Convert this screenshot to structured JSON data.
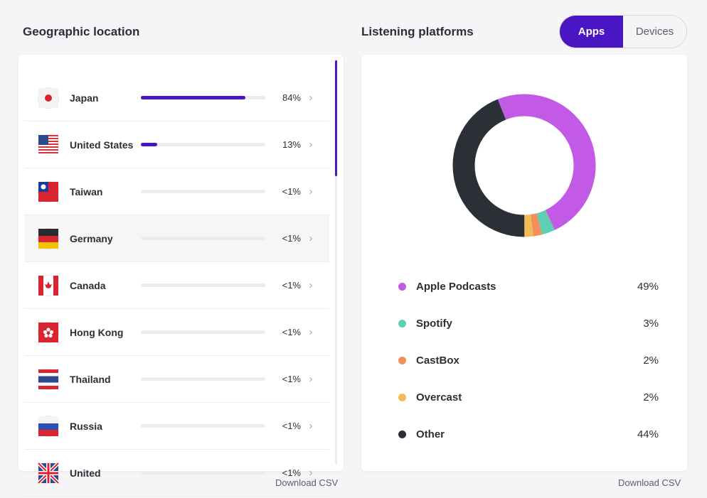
{
  "geo": {
    "title": "Geographic location",
    "download": "Download CSV",
    "rows": [
      {
        "name": "Japan",
        "pct": "84%",
        "fill": 0.84,
        "flag": "japan"
      },
      {
        "name": "United States",
        "pct": "13%",
        "fill": 0.13,
        "flag": "us"
      },
      {
        "name": "Taiwan",
        "pct": "<1%",
        "fill": 0,
        "flag": "taiwan"
      },
      {
        "name": "Germany",
        "pct": "<1%",
        "fill": 0,
        "flag": "germany"
      },
      {
        "name": "Canada",
        "pct": "<1%",
        "fill": 0,
        "flag": "canada"
      },
      {
        "name": "Hong Kong",
        "pct": "<1%",
        "fill": 0,
        "flag": "hongkong"
      },
      {
        "name": "Thailand",
        "pct": "<1%",
        "fill": 0,
        "flag": "thailand"
      },
      {
        "name": "Russia",
        "pct": "<1%",
        "fill": 0,
        "flag": "russia"
      },
      {
        "name": "United",
        "pct": "<1%",
        "fill": 0,
        "flag": "uk"
      }
    ]
  },
  "platforms": {
    "title": "Listening platforms",
    "download": "Download CSV",
    "toggle": {
      "apps": "Apps",
      "devices": "Devices"
    },
    "items": [
      {
        "name": "Apple Podcasts",
        "value": 49,
        "label": "49%",
        "color": "#c25ae6"
      },
      {
        "name": "Spotify",
        "value": 3,
        "label": "3%",
        "color": "#5fcfb3"
      },
      {
        "name": "CastBox",
        "value": 2,
        "label": "2%",
        "color": "#f0905a"
      },
      {
        "name": "Overcast",
        "value": 2,
        "label": "2%",
        "color": "#f2bb57"
      },
      {
        "name": "Other",
        "value": 44,
        "label": "44%",
        "color": "#2b2f36"
      }
    ]
  },
  "colors": {
    "accent": "#4a16c4"
  }
}
